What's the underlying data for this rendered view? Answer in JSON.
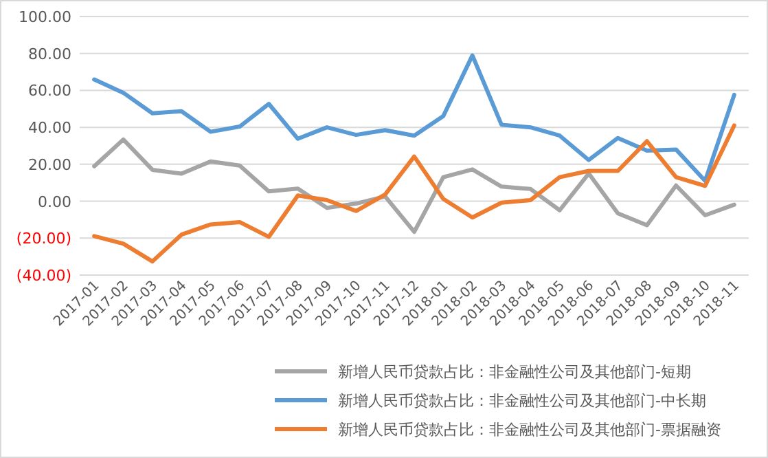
{
  "chart_data": {
    "type": "line",
    "categories": [
      "2017-01",
      "2017-02",
      "2017-03",
      "2017-04",
      "2017-05",
      "2017-06",
      "2017-07",
      "2017-08",
      "2017-09",
      "2017-10",
      "2017-11",
      "2017-12",
      "2018-01",
      "2018-02",
      "2018-03",
      "2018-04",
      "2018-05",
      "2018-06",
      "2018-07",
      "2018-08",
      "2018-09",
      "2018-10",
      "2018-11"
    ],
    "series": [
      {
        "name": "新增人民币贷款占比：非金融性公司及其他部门-短期",
        "color": "#a5a5a5",
        "values": [
          18.9,
          33.4,
          17,
          14.9,
          21.5,
          19.3,
          5.3,
          6.8,
          -3.6,
          -1.3,
          2.6,
          -16.6,
          13,
          17.2,
          7.9,
          6.6,
          -4.9,
          15,
          -6.6,
          -13,
          8.5,
          -7.6,
          -1.9
        ]
      },
      {
        "name": "新增人民币贷款占比：非金融性公司及其他部门-中长期",
        "color": "#5b9bd5",
        "values": [
          65.9,
          58.7,
          47.6,
          48.7,
          37.6,
          40.4,
          52.7,
          33.8,
          40,
          35.9,
          38.5,
          35.5,
          46.1,
          78.9,
          41.4,
          40,
          35.5,
          22.3,
          34.2,
          27.4,
          28,
          11,
          57.6
        ]
      },
      {
        "name": "新增人民币贷款占比：非金融性公司及其他部门-票据融资",
        "color": "#ed7d31",
        "values": [
          -18.9,
          -23,
          -32.6,
          -18.1,
          -12.6,
          -11.3,
          -19.3,
          3.1,
          0.6,
          -5.3,
          3.6,
          24.2,
          1.2,
          -8.8,
          -0.8,
          0.6,
          13,
          16.4,
          16.4,
          32.5,
          13,
          8.3,
          41
        ]
      }
    ],
    "ylim": [
      -40,
      100
    ],
    "yticks": [
      {
        "value": 100,
        "label": "100.00"
      },
      {
        "value": 80,
        "label": "80.00"
      },
      {
        "value": 60,
        "label": "60.00"
      },
      {
        "value": 40,
        "label": "40.00"
      },
      {
        "value": 20,
        "label": "20.00"
      },
      {
        "value": 0,
        "label": "0.00"
      },
      {
        "value": -20,
        "label": "(20.00)"
      },
      {
        "value": -40,
        "label": "(40.00)"
      }
    ],
    "grid": "y",
    "legend": "bottom",
    "marker": "none",
    "line_style": "solid"
  }
}
